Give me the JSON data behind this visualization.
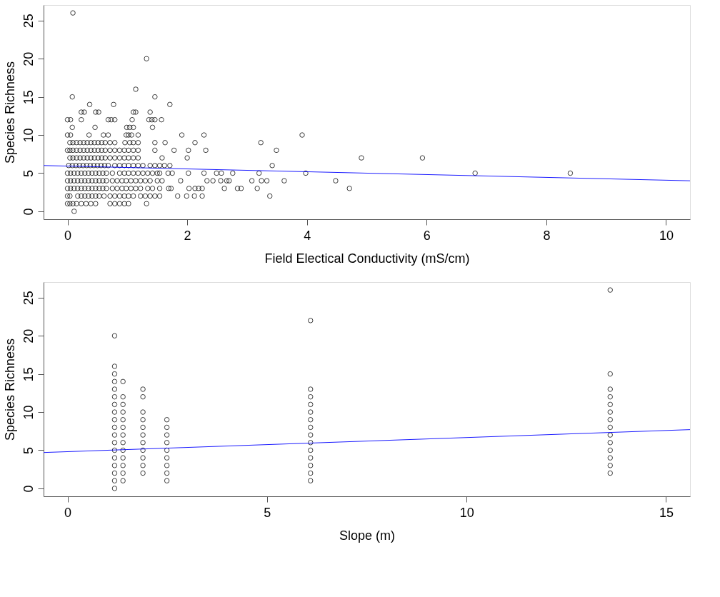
{
  "chart_data": [
    {
      "type": "scatter",
      "xlabel": "Field Electical Conductivity (mS/cm)",
      "ylabel": "Species Richness",
      "xlim": [
        -0.4,
        10.4
      ],
      "ylim": [
        -1.04,
        27.04
      ],
      "xticks": [
        0,
        2,
        4,
        6,
        8,
        10
      ],
      "yticks": [
        0,
        5,
        10,
        15,
        20,
        25
      ],
      "grid": false,
      "series": [
        {
          "color": "#000000",
          "marker": "circle",
          "x": [
            0.09,
            1.32,
            1.14,
            0.08,
            1.46,
            0.37,
            0.77,
            1.71
          ],
          "values": [
            26,
            20,
            16,
            15,
            15,
            14,
            14,
            14
          ]
        },
        {
          "color": "#000000",
          "marker": "circle",
          "x": [
            0.23,
            0.28,
            0.47,
            0.52,
            1.1,
            1.14,
            1.38
          ],
          "values": [
            13,
            13,
            13,
            13,
            13,
            13,
            13
          ]
        },
        {
          "color": "#000000",
          "marker": "circle",
          "x": [
            0.0,
            0.05,
            0.23,
            0.68,
            0.73,
            0.79,
            1.08,
            1.36,
            1.41,
            1.46,
            1.57
          ],
          "values": [
            12,
            12,
            12,
            12,
            12,
            12,
            12,
            12,
            12,
            12,
            12
          ]
        },
        {
          "color": "#000000",
          "marker": "circle",
          "x": [
            0.08,
            0.46,
            0.99,
            1.04,
            1.1,
            1.42
          ],
          "values": [
            11,
            11,
            11,
            11,
            11,
            11
          ]
        },
        {
          "color": "#000000",
          "marker": "circle",
          "x": [
            0.0,
            0.05,
            0.36,
            0.6,
            0.68,
            0.98,
            1.02,
            1.07,
            1.18,
            1.91,
            2.28,
            3.92
          ],
          "values": [
            10,
            10,
            10,
            10,
            10,
            10,
            10,
            10,
            10,
            10,
            10,
            10
          ]
        },
        {
          "color": "#000000",
          "marker": "circle",
          "x": [
            0.04,
            0.09,
            0.15,
            0.21,
            0.27,
            0.33,
            0.39,
            0.45,
            0.51,
            0.57,
            0.63,
            0.71,
            0.79,
            0.96,
            1.04,
            1.1,
            1.18,
            1.46,
            1.63,
            2.13,
            3.23
          ],
          "values": [
            9,
            9,
            9,
            9,
            9,
            9,
            9,
            9,
            9,
            9,
            9,
            9,
            9,
            9,
            9,
            9,
            9,
            9,
            9,
            9,
            9
          ]
        },
        {
          "color": "#000000",
          "marker": "circle",
          "x": [
            0.0,
            0.04,
            0.09,
            0.15,
            0.21,
            0.27,
            0.33,
            0.39,
            0.45,
            0.51,
            0.57,
            0.63,
            0.71,
            0.79,
            0.87,
            0.95,
            1.02,
            1.1,
            1.18,
            1.46,
            1.78,
            2.02,
            2.31,
            3.49
          ],
          "values": [
            8,
            8,
            8,
            8,
            8,
            8,
            8,
            8,
            8,
            8,
            8,
            8,
            8,
            8,
            8,
            8,
            8,
            8,
            8,
            8,
            8,
            8,
            8,
            8
          ]
        },
        {
          "color": "#000000",
          "marker": "circle",
          "x": [
            0.04,
            0.09,
            0.15,
            0.21,
            0.27,
            0.33,
            0.39,
            0.45,
            0.51,
            0.57,
            0.63,
            0.71,
            0.79,
            0.87,
            0.95,
            1.02,
            1.1,
            1.18,
            1.58,
            2.0,
            4.91,
            5.93
          ],
          "values": [
            7,
            7,
            7,
            7,
            7,
            7,
            7,
            7,
            7,
            7,
            7,
            7,
            7,
            7,
            7,
            7,
            7,
            7,
            7,
            7,
            7,
            7
          ]
        },
        {
          "color": "#000000",
          "marker": "circle",
          "x": [
            0.02,
            0.08,
            0.14,
            0.2,
            0.26,
            0.32,
            0.38,
            0.44,
            0.5,
            0.56,
            0.62,
            0.68,
            0.79,
            0.87,
            0.95,
            1.02,
            1.1,
            1.18,
            1.26,
            1.38,
            1.46,
            1.54,
            1.62,
            1.71,
            3.42
          ],
          "values": [
            6,
            6,
            6,
            6,
            6,
            6,
            6,
            6,
            6,
            6,
            6,
            6,
            6,
            6,
            6,
            6,
            6,
            6,
            6,
            6,
            6,
            6,
            6,
            6,
            6
          ]
        },
        {
          "color": "#000000",
          "marker": "circle",
          "x": [
            0.0,
            0.05,
            0.11,
            0.17,
            0.23,
            0.29,
            0.35,
            0.41,
            0.47,
            0.53,
            0.59,
            0.65,
            0.75,
            0.87,
            0.95,
            1.02,
            1.1,
            1.18,
            1.26,
            1.34,
            1.42,
            1.5,
            1.54,
            1.68,
            1.75,
            2.02,
            2.28,
            2.49,
            2.57,
            2.76,
            3.2,
            3.98,
            6.81,
            8.4
          ],
          "values": [
            5,
            5,
            5,
            5,
            5,
            5,
            5,
            5,
            5,
            5,
            5,
            5,
            5,
            5,
            5,
            5,
            5,
            5,
            5,
            5,
            5,
            5,
            5,
            5,
            5,
            5,
            5,
            5,
            5,
            5,
            5,
            5,
            5,
            5
          ]
        },
        {
          "color": "#000000",
          "marker": "circle",
          "x": [
            0.0,
            0.05,
            0.11,
            0.17,
            0.23,
            0.29,
            0.35,
            0.41,
            0.47,
            0.53,
            0.59,
            0.65,
            0.75,
            0.83,
            0.91,
            0.98,
            1.06,
            1.14,
            1.22,
            1.3,
            1.38,
            1.5,
            1.58,
            1.89,
            2.33,
            2.43,
            2.56,
            2.66,
            2.7,
            3.08,
            3.24,
            3.33,
            3.62,
            4.48
          ],
          "values": [
            4,
            4,
            4,
            4,
            4,
            4,
            4,
            4,
            4,
            4,
            4,
            4,
            4,
            4,
            4,
            4,
            4,
            4,
            4,
            4,
            4,
            4,
            4,
            4,
            4,
            4,
            4,
            4,
            4,
            4,
            4,
            4,
            4,
            4
          ]
        },
        {
          "color": "#000000",
          "marker": "circle",
          "x": [
            0.0,
            0.05,
            0.11,
            0.17,
            0.23,
            0.29,
            0.35,
            0.41,
            0.47,
            0.53,
            0.59,
            0.65,
            0.75,
            0.83,
            0.91,
            0.98,
            1.06,
            1.14,
            1.22,
            1.34,
            1.42,
            1.54,
            1.69,
            1.73,
            2.03,
            2.13,
            2.19,
            2.25,
            2.62,
            2.84,
            2.9,
            3.17,
            4.71
          ],
          "values": [
            3,
            3,
            3,
            3,
            3,
            3,
            3,
            3,
            3,
            3,
            3,
            3,
            3,
            3,
            3,
            3,
            3,
            3,
            3,
            3,
            3,
            3,
            3,
            3,
            3,
            3,
            3,
            3,
            3,
            3,
            3,
            3,
            3
          ]
        },
        {
          "color": "#000000",
          "marker": "circle",
          "x": [
            0.0,
            0.04,
            0.17,
            0.23,
            0.29,
            0.35,
            0.41,
            0.47,
            0.53,
            0.61,
            0.71,
            0.79,
            0.87,
            0.95,
            1.02,
            1.1,
            1.22,
            1.3,
            1.38,
            1.46,
            1.54,
            1.84,
            1.99,
            2.12,
            2.25,
            3.38
          ],
          "values": [
            2,
            2,
            2,
            2,
            2,
            2,
            2,
            2,
            2,
            2,
            2,
            2,
            2,
            2,
            2,
            2,
            2,
            2,
            2,
            2,
            2,
            2,
            2,
            2,
            2,
            2
          ]
        },
        {
          "color": "#000000",
          "marker": "circle",
          "x": [
            0.0,
            0.04,
            0.09,
            0.15,
            0.23,
            0.31,
            0.39,
            0.47,
            0.71,
            0.79,
            0.87,
            0.95,
            1.02,
            1.32,
            0.11
          ],
          "values": [
            1,
            1,
            1,
            1,
            1,
            1,
            1,
            1,
            1,
            1,
            1,
            1,
            1,
            1,
            0
          ]
        },
        {
          "type": "line",
          "color": "#0000ff",
          "marker": "none",
          "line_style": "solid",
          "x": [
            -0.4,
            10.4
          ],
          "values": [
            6.0,
            4.0
          ]
        }
      ]
    },
    {
      "type": "scatter",
      "xlabel": "Slope (m)",
      "ylabel": "Species Richness",
      "xlim": [
        -0.6,
        15.6
      ],
      "ylim": [
        -1.04,
        27.04
      ],
      "xticks": [
        0,
        5,
        10,
        15
      ],
      "yticks": [
        0,
        5,
        10,
        15,
        20,
        25
      ],
      "grid": false,
      "series": [
        {
          "color": "#000000",
          "marker": "circle",
          "x": [
            1.18,
            1.18,
            1.18,
            1.18,
            1.18,
            1.18,
            1.18,
            1.18,
            1.18,
            1.18,
            1.18,
            1.18,
            1.18,
            1.18,
            1.18,
            1.18,
            1.18,
            1.18
          ],
          "values": [
            0,
            1,
            2,
            3,
            4,
            5,
            6,
            7,
            8,
            9,
            10,
            11,
            12,
            13,
            14,
            15,
            16,
            20
          ]
        },
        {
          "color": "#000000",
          "marker": "circle",
          "x": [
            1.39,
            1.39,
            1.39,
            1.39,
            1.39,
            1.39,
            1.39,
            1.39,
            1.39,
            1.39,
            1.39,
            1.39,
            1.39
          ],
          "values": [
            1,
            2,
            3,
            4,
            5,
            6,
            7,
            8,
            9,
            10,
            11,
            12,
            14
          ]
        },
        {
          "color": "#000000",
          "marker": "circle",
          "x": [
            1.89,
            1.89,
            1.89,
            1.89,
            1.89,
            1.89,
            1.89,
            1.89,
            1.89,
            1.89,
            1.89
          ],
          "values": [
            2,
            3,
            4,
            5,
            6,
            7,
            8,
            9,
            10,
            12,
            13
          ]
        },
        {
          "color": "#000000",
          "marker": "circle",
          "x": [
            2.49,
            2.49,
            2.49,
            2.49,
            2.49,
            2.49,
            2.49,
            2.49,
            2.49
          ],
          "values": [
            1,
            2,
            3,
            4,
            5,
            6,
            7,
            8,
            9
          ]
        },
        {
          "color": "#000000",
          "marker": "circle",
          "x": [
            6.09,
            6.09,
            6.09,
            6.09,
            6.09,
            6.09,
            6.09,
            6.09,
            6.09,
            6.09,
            6.09,
            6.09,
            6.09,
            6.09
          ],
          "values": [
            1,
            2,
            3,
            4,
            5,
            6,
            7,
            8,
            9,
            10,
            11,
            12,
            13,
            22
          ]
        },
        {
          "color": "#000000",
          "marker": "circle",
          "x": [
            13.6,
            13.6,
            13.6,
            13.6,
            13.6,
            13.6,
            13.6,
            13.6,
            13.6,
            13.6,
            13.6,
            13.6,
            13.6,
            13.6
          ],
          "values": [
            2,
            3,
            4,
            5,
            6,
            7,
            8,
            9,
            10,
            11,
            12,
            13,
            15,
            26
          ]
        },
        {
          "type": "line",
          "color": "#0000ff",
          "marker": "none",
          "line_style": "solid",
          "x": [
            -0.6,
            15.6
          ],
          "values": [
            4.7,
            7.7
          ]
        }
      ]
    }
  ]
}
